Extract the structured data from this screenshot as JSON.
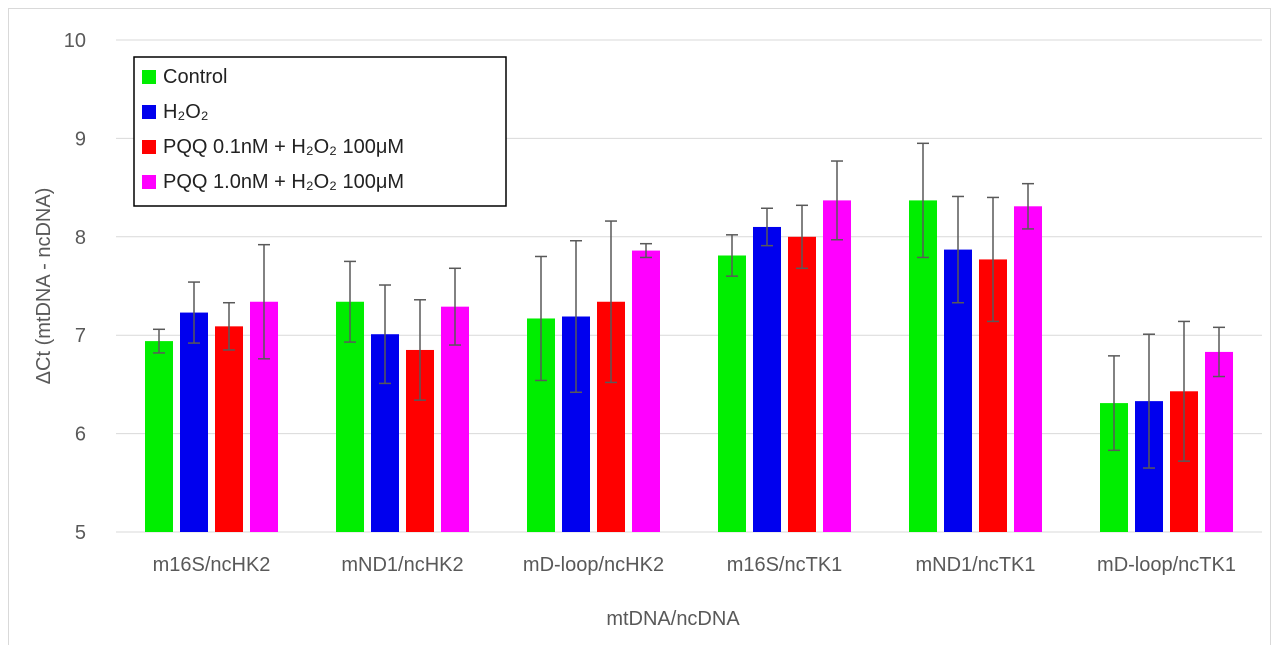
{
  "chart_data": {
    "type": "bar",
    "title": "",
    "xlabel": "mtDNA/ncDNA",
    "ylabel": "ΔCt (mtDNA - ncDNA)",
    "ylim": [
      5,
      10
    ],
    "yticks": [
      5,
      6,
      7,
      8,
      9,
      10
    ],
    "grid": true,
    "legend_position": "top-left",
    "categories": [
      "m16S/ncHK2",
      "mND1/ncHK2",
      "mD-loop/ncHK2",
      "m16S/ncTK1",
      "mND1/ncTK1",
      "mD-loop/ncTK1"
    ],
    "series": [
      {
        "name": "Control",
        "color": "#00ee00",
        "values": [
          6.94,
          7.34,
          7.17,
          7.81,
          8.37,
          6.31
        ],
        "errors": [
          0.12,
          0.41,
          0.63,
          0.21,
          0.58,
          0.48
        ]
      },
      {
        "name": "H₂O₂",
        "color": "#0000ee",
        "values": [
          7.23,
          7.01,
          7.19,
          8.1,
          7.87,
          6.33
        ],
        "errors": [
          0.31,
          0.5,
          0.77,
          0.19,
          0.54,
          0.68
        ]
      },
      {
        "name": "PQQ 0.1nM + H₂O₂ 100μM",
        "color": "#ff0000",
        "values": [
          7.09,
          6.85,
          7.34,
          8.0,
          7.77,
          6.43
        ],
        "errors": [
          0.24,
          0.51,
          0.82,
          0.32,
          0.63,
          0.71
        ]
      },
      {
        "name": "PQQ 1.0nM + H₂O₂ 100μM",
        "color": "#ff00ff",
        "values": [
          7.34,
          7.29,
          7.86,
          8.37,
          8.31,
          6.83
        ],
        "errors": [
          0.58,
          0.39,
          0.07,
          0.4,
          0.23,
          0.25
        ]
      }
    ]
  }
}
